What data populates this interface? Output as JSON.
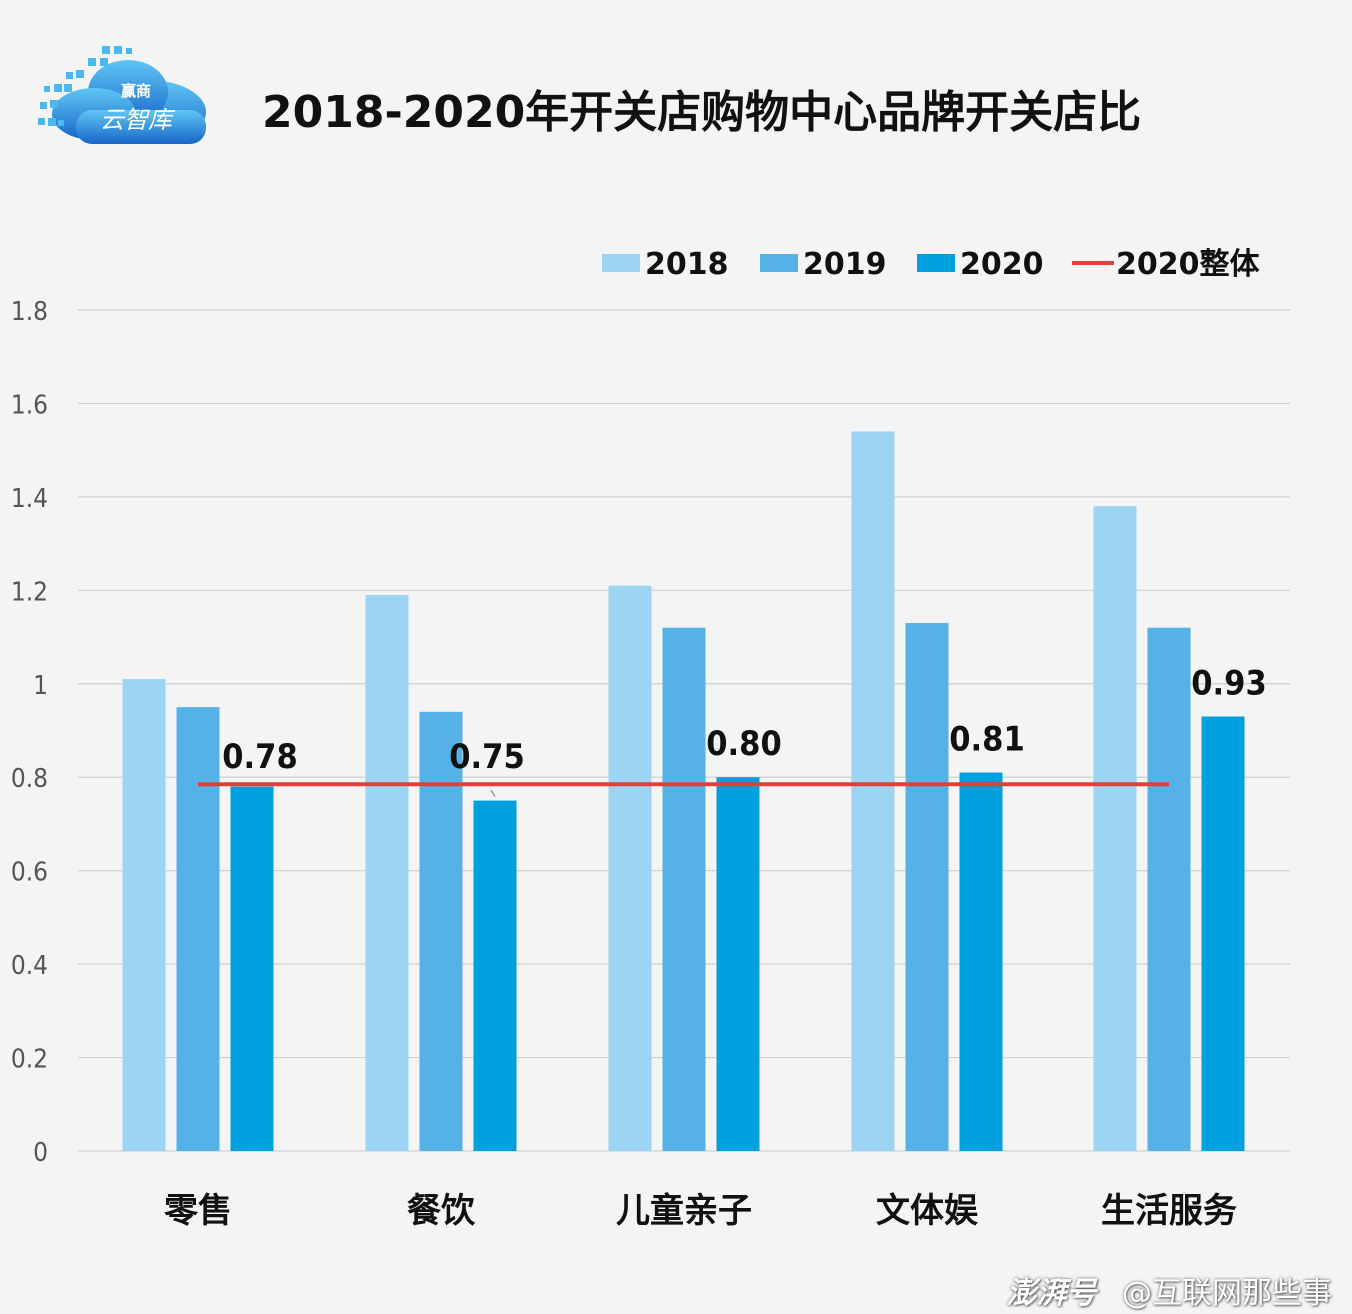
{
  "logo": {
    "line1": "赢商",
    "line2": "云智库"
  },
  "watermark": {
    "brand": "澎湃号",
    "handle": "@互联网那些事"
  },
  "colors": {
    "s2018": "#9dd3f3",
    "s2019": "#55b2e6",
    "s2020": "#009fdd",
    "overall": "#e0403a",
    "grid": "#d0d0d0",
    "text": "#111111",
    "tick": "#555555"
  },
  "chart_data": {
    "type": "bar",
    "title": "2018-2020年开关店购物中心品牌开关店比",
    "categories": [
      "零售",
      "餐饮",
      "儿童亲子",
      "文体娱",
      "生活服务"
    ],
    "series": [
      {
        "name": "2018",
        "values": [
          1.01,
          1.19,
          1.21,
          1.54,
          1.38
        ]
      },
      {
        "name": "2019",
        "values": [
          0.95,
          0.94,
          1.12,
          1.13,
          1.12
        ]
      },
      {
        "name": "2020",
        "values": [
          0.78,
          0.75,
          0.8,
          0.81,
          0.93
        ]
      }
    ],
    "data_labels_2020": [
      "0.78",
      "0.75",
      "0.80",
      "0.81",
      "0.93"
    ],
    "reference_line": {
      "name": "2020整体",
      "value": 0.785
    },
    "yticks": [
      "0",
      "0.2",
      "0.4",
      "0.6",
      "0.8",
      "1",
      "1.2",
      "1.4",
      "1.6",
      "1.8"
    ],
    "ylim": [
      0,
      1.8
    ],
    "grid": true,
    "legend_position": "top-right"
  }
}
